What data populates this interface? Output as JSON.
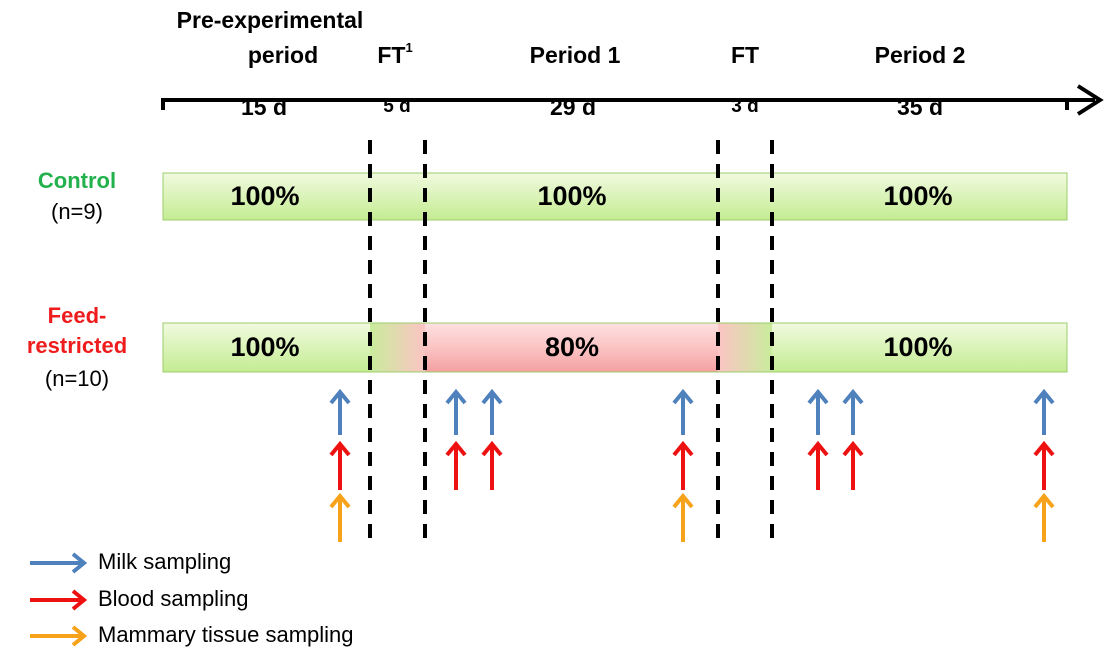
{
  "timeline": {
    "periods": [
      {
        "label": [
          "Pre-experimental",
          "period"
        ],
        "duration": "15 d"
      },
      {
        "label": "FT",
        "footnote": "1",
        "duration": "5 d"
      },
      {
        "label": "Period 1",
        "duration": "29 d"
      },
      {
        "label": "FT",
        "duration": "3 d"
      },
      {
        "label": "Period 2",
        "duration": "35 d"
      }
    ]
  },
  "groups": [
    {
      "name": "Control",
      "n": "(n=9)",
      "levels": [
        "100%",
        "100%",
        "100%"
      ]
    },
    {
      "name": [
        "Feed-",
        "restricted"
      ],
      "n": "(n=10)",
      "levels": [
        "100%",
        "80%",
        "100%"
      ]
    }
  ],
  "legend": [
    "Milk sampling",
    "Blood sampling",
    "Mammary tissue sampling"
  ]
}
